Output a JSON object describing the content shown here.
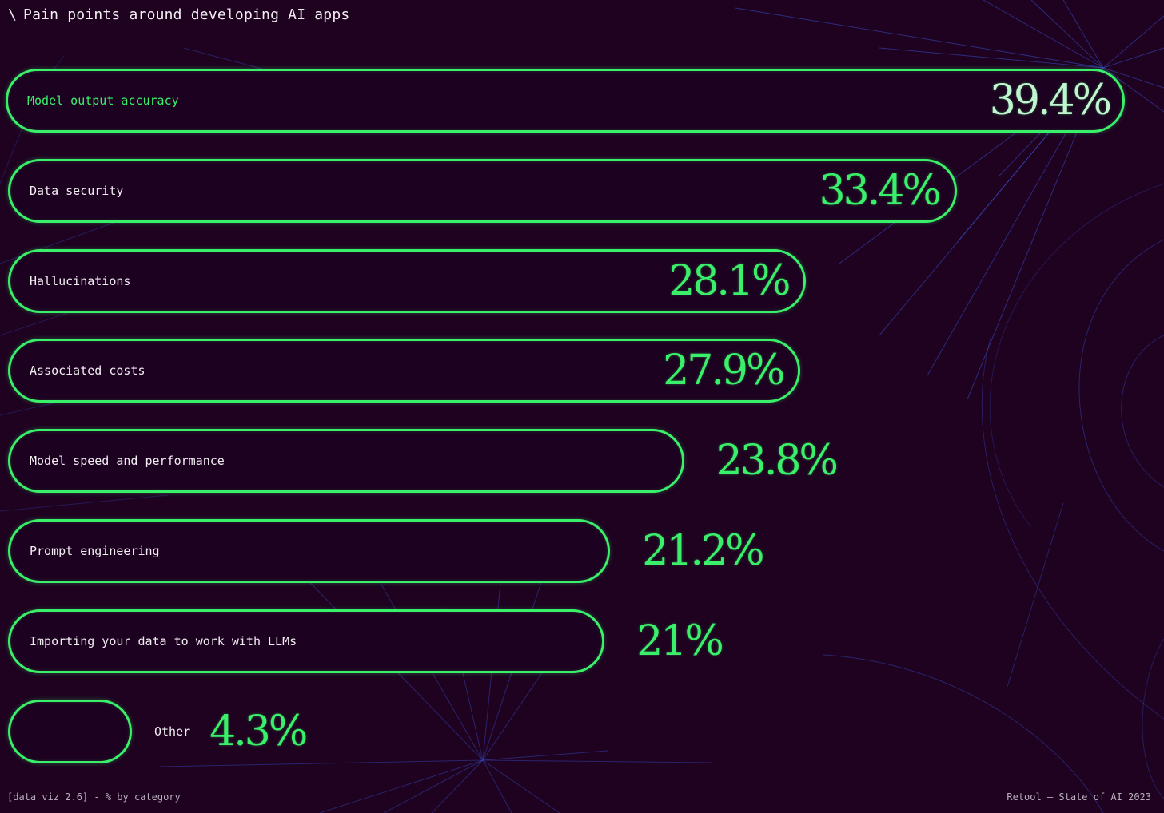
{
  "title": "Pain points around developing AI apps",
  "footer": {
    "left": "[data viz 2.6] - % by category",
    "right": "Retool — State of AI 2023"
  },
  "colors": {
    "background": "#1e0220",
    "accent": "#3af06a",
    "text": "#f1eef2",
    "background_lines": "#3a4cc8"
  },
  "chart_data": {
    "type": "bar",
    "orientation": "horizontal",
    "title": "Pain points around developing AI apps",
    "unit": "%",
    "categories": [
      "Model output accuracy",
      "Data security",
      "Hallucinations",
      "Associated costs",
      "Model speed and performance",
      "Prompt engineering",
      "Importing your data to work with LLMs",
      "Other"
    ],
    "values": [
      39.4,
      33.4,
      28.1,
      27.9,
      23.8,
      21.2,
      21,
      4.3
    ],
    "value_labels": [
      "39.4%",
      "33.4%",
      "28.1%",
      "27.9%",
      "23.8%",
      "21.2%",
      "21%",
      "4.3%"
    ],
    "xlim": [
      0,
      39.4
    ],
    "grid": false,
    "legend": "none"
  }
}
